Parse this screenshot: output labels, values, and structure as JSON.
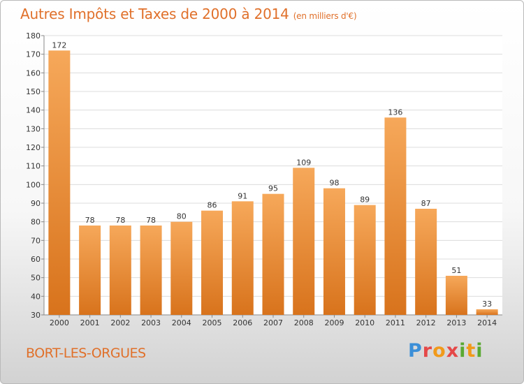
{
  "title": {
    "main": "Autres Impôts et Taxes de 2000 à 2014",
    "sub": "(en milliers d'€)"
  },
  "commune": "BORT-LES-ORGUES",
  "logo": [
    "P",
    "r",
    "o",
    "x",
    "i",
    "t",
    "i"
  ],
  "colors": {
    "accent": "#e0702a",
    "bar_top": "#f6a85a",
    "bar_bottom": "#d8731c"
  },
  "chart_data": {
    "type": "bar",
    "categories": [
      "2000",
      "2001",
      "2002",
      "2003",
      "2004",
      "2005",
      "2006",
      "2007",
      "2008",
      "2009",
      "2010",
      "2011",
      "2012",
      "2013",
      "2014"
    ],
    "values": [
      172,
      78,
      78,
      78,
      80,
      86,
      91,
      95,
      109,
      98,
      89,
      136,
      87,
      51,
      33
    ],
    "ylim": [
      30,
      180
    ],
    "yticks": [
      30,
      40,
      50,
      60,
      70,
      80,
      90,
      100,
      110,
      120,
      130,
      140,
      150,
      160,
      170,
      180
    ],
    "grid": true
  }
}
